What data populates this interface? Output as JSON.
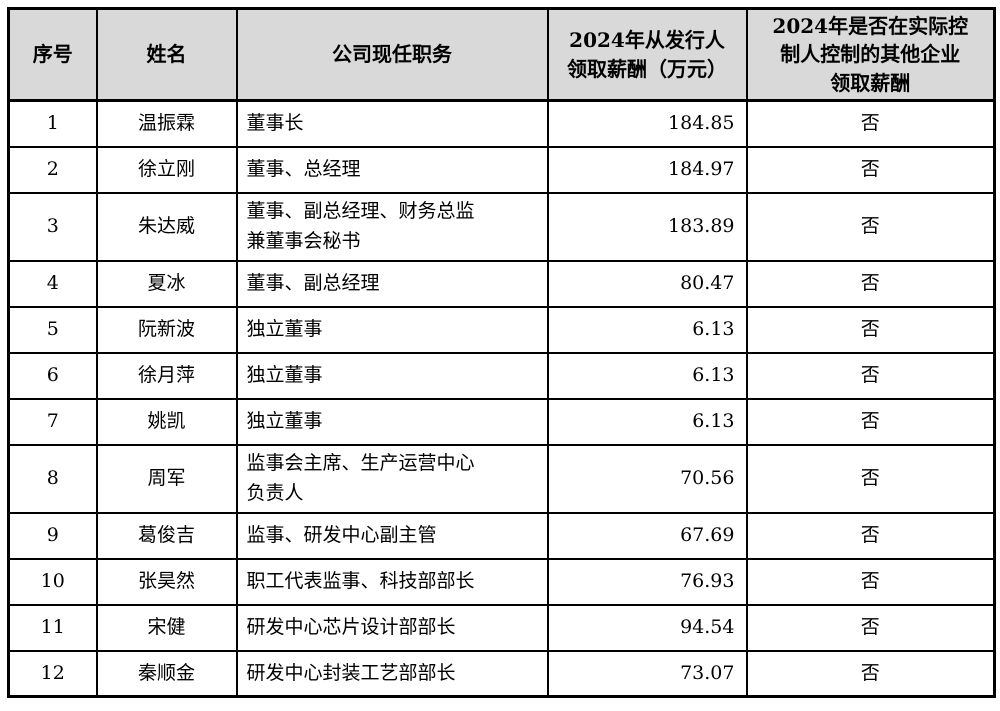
{
  "page": {
    "background_color": "#ffffff",
    "border_color": "#000000",
    "header_bg_color": "#d9d9d9"
  },
  "table": {
    "columns": [
      {
        "key": "no",
        "label": "序号"
      },
      {
        "key": "name",
        "label": "姓名"
      },
      {
        "key": "position",
        "label": "公司现任职务"
      },
      {
        "key": "salary",
        "label": "2024年从发行人\n领取薪酬（万元）"
      },
      {
        "key": "other",
        "label": "2024年是否在实际控\n制人控制的其他企业\n领取薪酬"
      }
    ],
    "rows": [
      {
        "no": "1",
        "name": "温振霖",
        "position": "董事长",
        "salary": "184.85",
        "other": "否"
      },
      {
        "no": "2",
        "name": "徐立刚",
        "position": "董事、总经理",
        "salary": "184.97",
        "other": "否"
      },
      {
        "no": "3",
        "name": "朱达威",
        "position": "董事、副总经理、财务总监\n兼董事会秘书",
        "salary": "183.89",
        "other": "否"
      },
      {
        "no": "4",
        "name": "夏冰",
        "position": "董事、副总经理",
        "salary": "80.47",
        "other": "否"
      },
      {
        "no": "5",
        "name": "阮新波",
        "position": "独立董事",
        "salary": "6.13",
        "other": "否"
      },
      {
        "no": "6",
        "name": "徐月萍",
        "position": "独立董事",
        "salary": "6.13",
        "other": "否"
      },
      {
        "no": "7",
        "name": "姚凯",
        "position": "独立董事",
        "salary": "6.13",
        "other": "否"
      },
      {
        "no": "8",
        "name": "周军",
        "position": "监事会主席、生产运营中心\n负责人",
        "salary": "70.56",
        "other": "否"
      },
      {
        "no": "9",
        "name": "葛俊吉",
        "position": "监事、研发中心副主管",
        "salary": "67.69",
        "other": "否"
      },
      {
        "no": "10",
        "name": "张昊然",
        "position": "职工代表监事、科技部部长",
        "salary": "76.93",
        "other": "否"
      },
      {
        "no": "11",
        "name": "宋健",
        "position": "研发中心芯片设计部部长",
        "salary": "94.54",
        "other": "否"
      },
      {
        "no": "12",
        "name": "秦顺金",
        "position": "研发中心封装工艺部部长",
        "salary": "73.07",
        "other": "否"
      }
    ]
  }
}
